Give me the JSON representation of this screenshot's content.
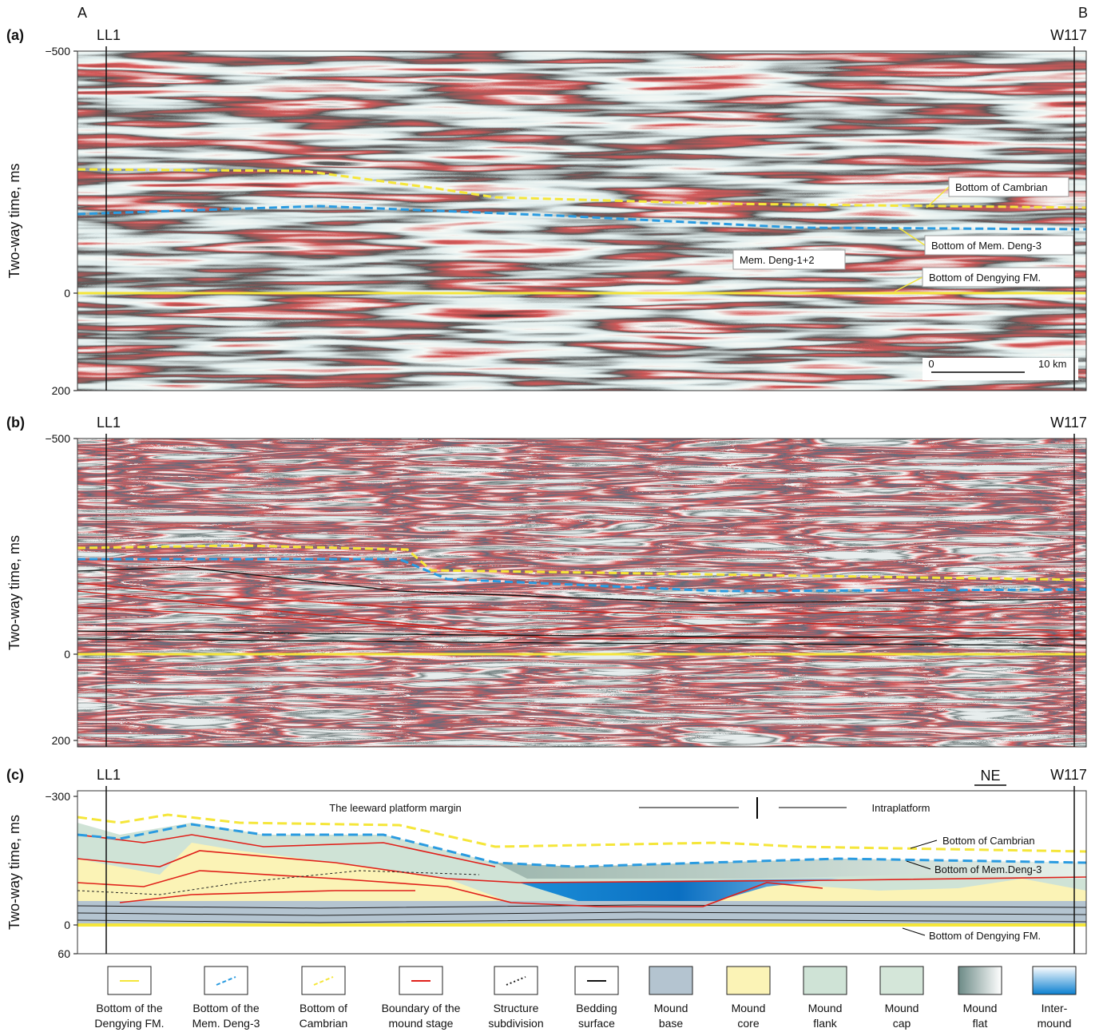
{
  "figure": {
    "corner_labels": [
      "A",
      "B"
    ],
    "panels": [
      {
        "label": "(a)",
        "y_axis_label": "Two-way time, ms",
        "wells": [
          "LL1",
          "W117"
        ],
        "yticks": [
          "−500",
          "0",
          "200"
        ],
        "annotations": [
          "Bottom of Cambrian",
          "Bottom of Mem. Deng-3",
          "Mem. Deng-1+2",
          "Bottom of Dengying FM."
        ],
        "scale_bar": [
          "0",
          "10 km"
        ]
      },
      {
        "label": "(b)",
        "y_axis_label": "Two-way time, ms",
        "wells": [
          "LL1",
          "W117"
        ],
        "yticks": [
          "−500",
          "0",
          "200"
        ]
      },
      {
        "label": "(c)",
        "y_axis_label": "Two-way time, ms",
        "wells": [
          "LL1",
          "W117"
        ],
        "yticks": [
          "−300",
          "0",
          "60"
        ],
        "direction": "NE",
        "annotations": [
          "The leeward platform margin",
          "Intraplatform",
          "Bottom of Cambrian",
          "Bottom of Mem.Deng-3",
          "Bottom of Dengying FM."
        ]
      }
    ],
    "legend": [
      {
        "lines": [
          "Bottom of the",
          "Dengying FM."
        ]
      },
      {
        "lines": [
          "Bottom of the",
          "Mem. Deng-3"
        ]
      },
      {
        "lines": [
          "Bottom of",
          "Cambrian"
        ]
      },
      {
        "lines": [
          "Boundary of the",
          "mound stage"
        ]
      },
      {
        "lines": [
          "Structure",
          "subdivision"
        ]
      },
      {
        "lines": [
          "Bedding",
          "surface"
        ]
      },
      {
        "lines": [
          "Mound",
          "base"
        ]
      },
      {
        "lines": [
          "Mound",
          "core"
        ]
      },
      {
        "lines": [
          "Mound",
          "flank"
        ]
      },
      {
        "lines": [
          "Mound",
          "cap"
        ]
      },
      {
        "lines": [
          "Mound",
          "flat"
        ]
      },
      {
        "lines": [
          "Inter-",
          "mound"
        ]
      }
    ]
  }
}
